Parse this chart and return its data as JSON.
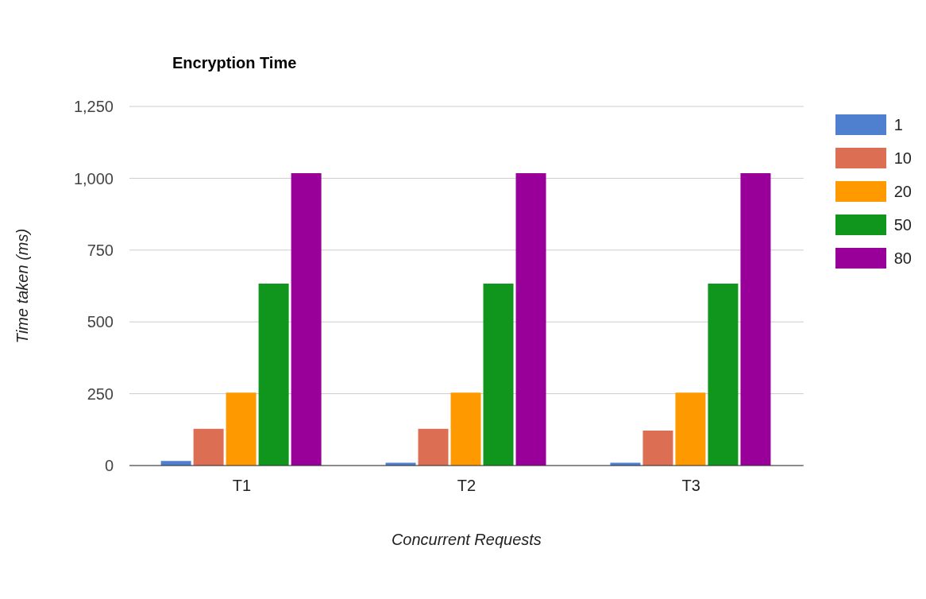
{
  "chart_data": {
    "type": "bar",
    "title": "Encryption Time",
    "xlabel": "Concurrent Requests",
    "ylabel": "Time taken (ms)",
    "categories": [
      "T1",
      "T2",
      "T3"
    ],
    "series": [
      {
        "name": "1",
        "color": "#4f7fcf",
        "values": [
          16,
          10,
          10
        ]
      },
      {
        "name": "10",
        "color": "#dc6e53",
        "values": [
          128,
          128,
          122
        ]
      },
      {
        "name": "20",
        "color": "#ff9900",
        "values": [
          254,
          254,
          254
        ]
      },
      {
        "name": "50",
        "color": "#10951d",
        "values": [
          633,
          633,
          633
        ]
      },
      {
        "name": "80",
        "color": "#990099",
        "values": [
          1018,
          1018,
          1018
        ]
      }
    ],
    "ylim": [
      0,
      1250
    ],
    "yticks": [
      {
        "value": 0,
        "label": "0"
      },
      {
        "value": 250,
        "label": "250"
      },
      {
        "value": 500,
        "label": "500"
      },
      {
        "value": 750,
        "label": "750"
      },
      {
        "value": 1000,
        "label": "1,000"
      },
      {
        "value": 1250,
        "label": "1,250"
      }
    ],
    "grid": "y",
    "legend": "right"
  }
}
